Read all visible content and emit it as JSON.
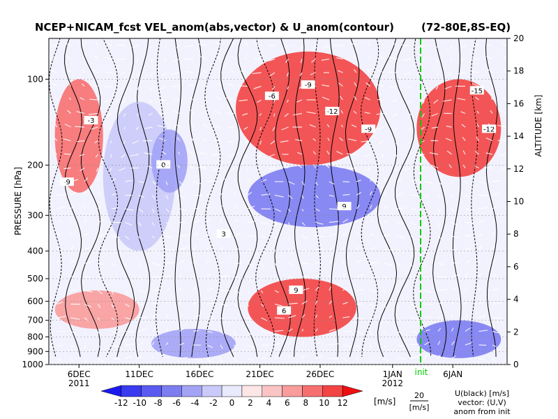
{
  "chart_data": {
    "type": "heatmap",
    "title": "NCEP+NICAM_fcst VEL_anom(abs,vector) & U_anom(contour)",
    "region": "(72-80E,8S-EQ)",
    "ylabel_left": "PRESSURE [hPa]",
    "ylabel_right": "ALTITUDE [km]",
    "pressure_ticks": [
      100,
      200,
      300,
      400,
      500,
      600,
      700,
      800,
      900,
      1000
    ],
    "pressure_tick_labels": [
      "100",
      "200",
      "300",
      "400",
      "500",
      "600",
      "700",
      "800",
      "900",
      "1000"
    ],
    "altitude_ticks": [
      0,
      2,
      4,
      6,
      8,
      10,
      12,
      14,
      16,
      18,
      20
    ],
    "x_ticks": [
      {
        "date": "2011-12-06",
        "label": "6DEC",
        "sublabel": "2011"
      },
      {
        "date": "2011-12-11",
        "label": "11DEC",
        "sublabel": ""
      },
      {
        "date": "2011-12-16",
        "label": "16DEC",
        "sublabel": ""
      },
      {
        "date": "2011-12-21",
        "label": "21DEC",
        "sublabel": ""
      },
      {
        "date": "2011-12-26",
        "label": "26DEC",
        "sublabel": ""
      },
      {
        "date": "2012-01-01",
        "label": "1JAN",
        "sublabel": "2012"
      },
      {
        "date": "2012-01-06",
        "label": "6JAN",
        "sublabel": ""
      }
    ],
    "init_marker": {
      "label": "init",
      "color": "#00cc00"
    },
    "colorbar": {
      "levels": [
        -12,
        -10,
        -8,
        -6,
        -4,
        -2,
        0,
        2,
        4,
        6,
        8,
        10,
        12
      ],
      "labels": [
        "-12",
        "-10",
        "-8",
        "-6",
        "-4",
        "-2",
        "0",
        "2",
        "4",
        "6",
        "8",
        "10",
        "12"
      ],
      "unit": "[m/s]",
      "colors": [
        "#1a1aee",
        "#3a3aef",
        "#5a5af0",
        "#7d7df2",
        "#a3a3f6",
        "#cacafa",
        "#eaeafd",
        "#fde6e6",
        "#fbc4c4",
        "#f99c9c",
        "#f77070",
        "#f34444",
        "#ee1010"
      ]
    },
    "vector_scale": {
      "value": "20",
      "unit": "[m/s]"
    },
    "legend_notes": [
      "U(black) [m/s]",
      "vector: (U,V)",
      "anom from init"
    ],
    "anomaly_cells": [
      {
        "t0": "12-04",
        "t1": "12-08",
        "p0": 100,
        "p1": 250,
        "u": 8
      },
      {
        "t0": "12-08",
        "t1": "12-14",
        "p0": 120,
        "p1": 400,
        "u": -2
      },
      {
        "t0": "12-12",
        "t1": "12-15",
        "p0": 150,
        "p1": 250,
        "u": -5
      },
      {
        "t0": "12-19",
        "t1": "12-31",
        "p0": 80,
        "p1": 200,
        "u": 10
      },
      {
        "t0": "12-20",
        "t1": "12-31",
        "p0": 200,
        "p1": 330,
        "u": -6
      },
      {
        "t0": "12-20",
        "t1": "12-29",
        "p0": 500,
        "p1": 800,
        "u": 9
      },
      {
        "t0": "12-04",
        "t1": "12-11",
        "p0": 550,
        "p1": 750,
        "u": 5
      },
      {
        "t0": "12-12",
        "t1": "12-19",
        "p0": 750,
        "p1": 950,
        "u": -5
      },
      {
        "t0": "01-03",
        "t1": "01-10",
        "p0": 100,
        "p1": 220,
        "u": 10
      },
      {
        "t0": "01-03",
        "t1": "01-10",
        "p0": 700,
        "p1": 950,
        "u": -6
      }
    ],
    "contour_labels": [
      "-3",
      "-6",
      "-9",
      "-12",
      "-15",
      "0",
      "3",
      "6",
      "9"
    ]
  }
}
